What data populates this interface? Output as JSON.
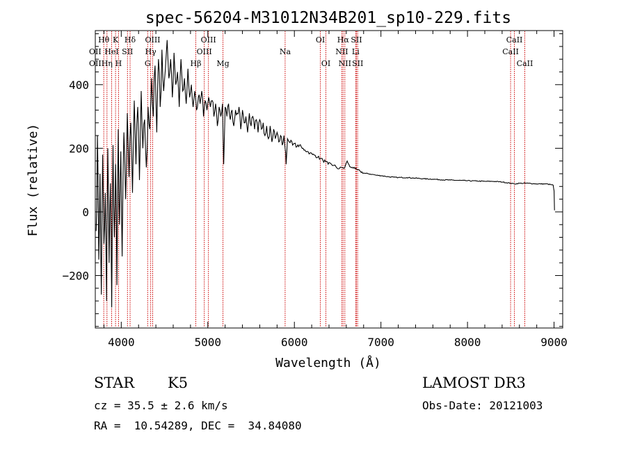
{
  "chart_data": {
    "type": "line",
    "title": "spec-56204-M31012N34B201_sp10-229.fits",
    "xlabel": "Wavelength (Å)",
    "ylabel": "Flux (relative)",
    "xlim": [
      3700,
      9100
    ],
    "ylim": [
      -365,
      570
    ],
    "xticks": [
      4000,
      5000,
      6000,
      7000,
      8000,
      9000
    ],
    "xtick_labels": [
      "4000",
      "5000",
      "6000",
      "7000",
      "8000",
      "9000"
    ],
    "yticks": [
      -200,
      0,
      200,
      400
    ],
    "ytick_labels": [
      "−200",
      "0",
      "200",
      "400"
    ],
    "series": [
      {
        "name": "spectrum",
        "x": [
          3710,
          3725,
          3740,
          3755,
          3770,
          3785,
          3800,
          3815,
          3830,
          3845,
          3860,
          3875,
          3890,
          3905,
          3920,
          3935,
          3950,
          3965,
          3980,
          3995,
          4010,
          4030,
          4050,
          4070,
          4090,
          4110,
          4130,
          4150,
          4170,
          4190,
          4210,
          4230,
          4250,
          4270,
          4290,
          4310,
          4330,
          4350,
          4370,
          4390,
          4410,
          4430,
          4450,
          4470,
          4490,
          4510,
          4530,
          4550,
          4570,
          4590,
          4610,
          4630,
          4650,
          4670,
          4690,
          4710,
          4730,
          4750,
          4770,
          4790,
          4810,
          4830,
          4850,
          4870,
          4890,
          4910,
          4930,
          4950,
          4970,
          4990,
          5010,
          5030,
          5050,
          5070,
          5090,
          5110,
          5130,
          5150,
          5170,
          5183,
          5200,
          5220,
          5240,
          5260,
          5280,
          5300,
          5320,
          5340,
          5360,
          5380,
          5400,
          5420,
          5440,
          5460,
          5480,
          5500,
          5520,
          5540,
          5560,
          5580,
          5600,
          5620,
          5640,
          5660,
          5680,
          5700,
          5720,
          5740,
          5760,
          5780,
          5800,
          5820,
          5840,
          5860,
          5880,
          5893,
          5905,
          5920,
          5940,
          5960,
          5980,
          6000,
          6030,
          6060,
          6090,
          6120,
          6150,
          6180,
          6210,
          6240,
          6270,
          6300,
          6330,
          6360,
          6390,
          6420,
          6450,
          6480,
          6510,
          6540,
          6563,
          6580,
          6610,
          6640,
          6670,
          6700,
          6730,
          6760,
          6800,
          6850,
          6900,
          6950,
          7000,
          7050,
          7100,
          7150,
          7200,
          7300,
          7400,
          7500,
          7600,
          7700,
          7800,
          7900,
          8000,
          8100,
          8200,
          8300,
          8400,
          8500,
          8542,
          8600,
          8700,
          8800,
          8900,
          8960,
          8990,
          9000,
          9005
        ],
        "y": [
          -60,
          240,
          -150,
          120,
          -260,
          180,
          -100,
          60,
          -280,
          200,
          -160,
          90,
          -300,
          210,
          -80,
          150,
          -230,
          260,
          -40,
          190,
          -140,
          250,
          40,
          310,
          110,
          280,
          60,
          350,
          150,
          330,
          100,
          380,
          200,
          290,
          140,
          330,
          260,
          420,
          300,
          460,
          250,
          480,
          330,
          510,
          380,
          450,
          540,
          420,
          480,
          360,
          500,
          400,
          440,
          330,
          480,
          380,
          420,
          340,
          450,
          360,
          400,
          330,
          380,
          320,
          360,
          340,
          380,
          300,
          350,
          320,
          360,
          330,
          350,
          300,
          340,
          270,
          330,
          300,
          340,
          150,
          330,
          300,
          340,
          290,
          320,
          270,
          320,
          310,
          330,
          260,
          320,
          280,
          300,
          250,
          310,
          270,
          300,
          260,
          290,
          250,
          290,
          260,
          280,
          240,
          270,
          230,
          270,
          220,
          260,
          230,
          250,
          220,
          240,
          210,
          240,
          200,
          150,
          230,
          220,
          225,
          210,
          215,
          205,
          210,
          200,
          195,
          190,
          185,
          180,
          178,
          172,
          168,
          162,
          158,
          150,
          152,
          146,
          142,
          135,
          140,
          138,
          138,
          160,
          142,
          140,
          136,
          132,
          128,
          122,
          120,
          118,
          115,
          114,
          112,
          110,
          109,
          108,
          108,
          106,
          104,
          103,
          101,
          100,
          99,
          98,
          97,
          96,
          96,
          94,
          90,
          88,
          90,
          90,
          88,
          88,
          86,
          84,
          66,
          5
        ]
      }
    ],
    "lines": [
      {
        "name": "Hθ",
        "x": 3798,
        "row": 0
      },
      {
        "name": "Hη",
        "x": 3835,
        "row": 2
      },
      {
        "name": "HeI",
        "x": 3889,
        "row": 1
      },
      {
        "name": "K",
        "x": 3934,
        "row": 0
      },
      {
        "name": "H",
        "x": 3969,
        "row": 2
      },
      {
        "name": "SII",
        "x": 4072,
        "row": 1
      },
      {
        "name": "Hδ",
        "x": 4102,
        "row": 0
      },
      {
        "name": "G",
        "x": 4305,
        "row": 2
      },
      {
        "name": "Hγ",
        "x": 4340,
        "row": 1
      },
      {
        "name": "OIII",
        "x": 4363,
        "row": 0
      },
      {
        "name": "Hβ",
        "x": 4861,
        "row": 2
      },
      {
        "name": "OIII",
        "x": 4959,
        "row": 1
      },
      {
        "name": "OIII",
        "x": 5007,
        "row": 0
      },
      {
        "name": "Mg",
        "x": 5175,
        "row": 2
      },
      {
        "name": "Na",
        "x": 5893,
        "row": 1
      },
      {
        "name": "OI",
        "x": 6300,
        "row": 0
      },
      {
        "name": "OI",
        "x": 6364,
        "row": 2
      },
      {
        "name": "NII",
        "x": 6548,
        "row": 1
      },
      {
        "name": "Hα",
        "x": 6563,
        "row": 0
      },
      {
        "name": "NII",
        "x": 6583,
        "row": 2
      },
      {
        "name": "Li",
        "x": 6708,
        "row": 1
      },
      {
        "name": "SII",
        "x": 6717,
        "row": 0
      },
      {
        "name": "SII",
        "x": 6731,
        "row": 2
      },
      {
        "name": "CaII",
        "x": 8498,
        "row": 1
      },
      {
        "name": "CaII",
        "x": 8542,
        "row": 0
      },
      {
        "name": "CaII",
        "x": 8662,
        "row": 2
      }
    ],
    "clipped_line_labels": [
      "OII",
      "OII"
    ],
    "line_color": "#cc0000"
  },
  "info": {
    "class": "STAR",
    "subclass": "K5",
    "cz": "cz = 35.5 ± 2.6 km/s",
    "radec": "RA =  10.54289, DEC =  34.84080",
    "survey": "LAMOST DR3",
    "obsdate": "Obs-Date: 20121003"
  }
}
